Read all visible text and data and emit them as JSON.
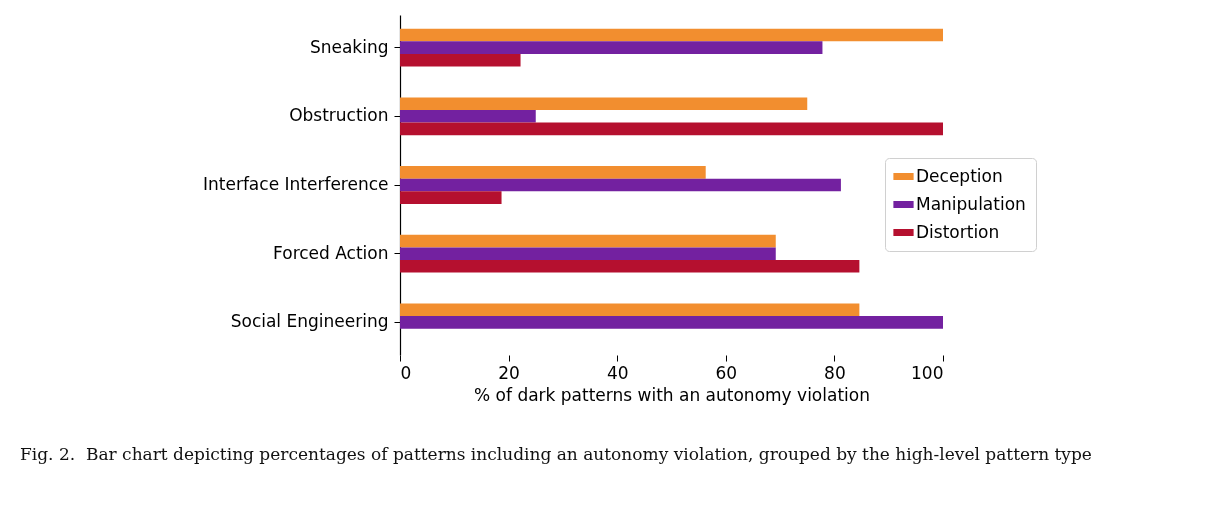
{
  "chart_data": {
    "type": "bar",
    "orientation": "horizontal",
    "categories": [
      "Sneaking",
      "Obstruction",
      "Interface Interference",
      "Forced Action",
      "Social Engineering"
    ],
    "series": [
      {
        "name": "Deception",
        "color": "#f28e2f",
        "values": [
          100,
          75,
          56.3,
          69.2,
          84.6
        ]
      },
      {
        "name": "Manipulation",
        "color": "#7321a0",
        "values": [
          77.8,
          25,
          81.2,
          69.2,
          100
        ]
      },
      {
        "name": "Distortion",
        "color": "#b5102f",
        "values": [
          22.2,
          100,
          18.7,
          84.6,
          0
        ]
      }
    ],
    "xlim": [
      0,
      100
    ],
    "xticks": [
      0,
      20,
      40,
      60,
      80,
      100
    ],
    "xlabel": "% of dark patterns with an autonomy violation",
    "legend": "right",
    "annotations": [
      "Fig. 2.  Bar chart depicting percentages of patterns including an autonomy violation, grouped by the high-level pattern type"
    ]
  }
}
